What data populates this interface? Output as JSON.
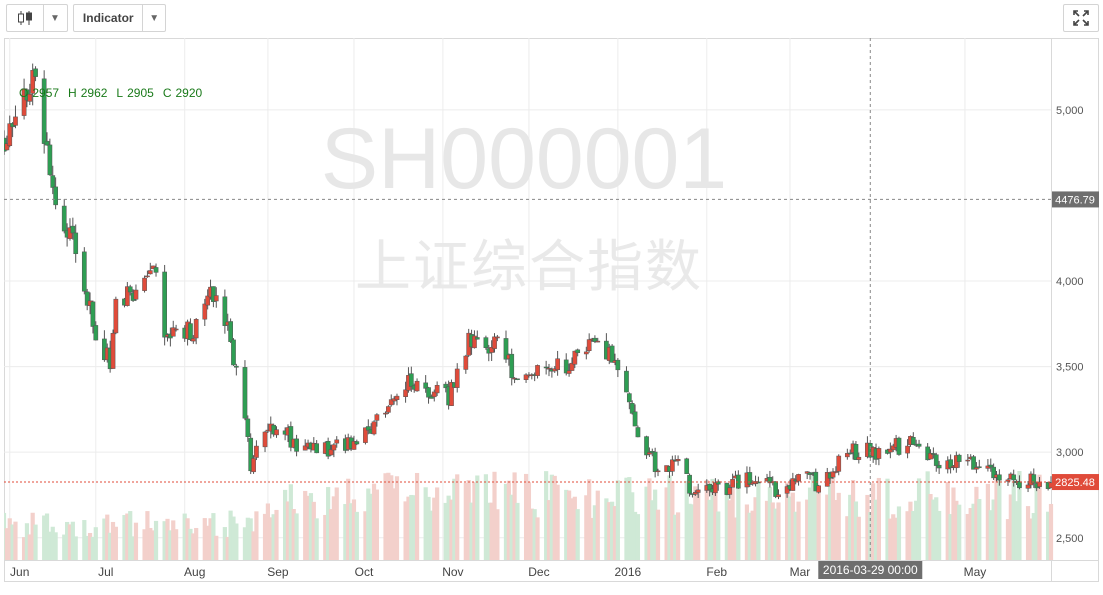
{
  "toolbar": {
    "chart_type_icon": "candlestick-icon",
    "dropdown_icon": "chevron-down-icon",
    "indicator_label": "Indicator",
    "fullscreen_icon": "expand-icon"
  },
  "legend": {
    "o_label": "O",
    "o_value": "2957",
    "h_label": "H",
    "h_value": "2962",
    "l_label": "L",
    "l_value": "2905",
    "c_label": "C",
    "c_value": "2920"
  },
  "watermark": {
    "symbol": "SH000001",
    "name": "上证综合指数"
  },
  "crosshair": {
    "price_label": "4476.79",
    "price": 4476.79,
    "time_label": "2016-03-29 00:00",
    "time": "2016-03-29"
  },
  "last_price": {
    "label": "2825.48",
    "price": 2825.48
  },
  "colors": {
    "up": "#e04b3a",
    "down": "#2e9e53",
    "up_volume": "#f3d0cb",
    "down_volume": "#cfe9d6",
    "crosshair": "#888888",
    "last_price": "#e04b3a",
    "grid": "#ececec"
  },
  "chart_data": {
    "type": "candlestick",
    "title": "SH000001",
    "subtitle": "上证综合指数",
    "xlabel": "",
    "ylabel": "",
    "x_range": [
      "2015-06-01",
      "2016-05-31"
    ],
    "ylim": [
      2370,
      5420
    ],
    "grid": true,
    "legend_position": "top-left",
    "y_ticks": [
      "2,500",
      "3,000",
      "3,500",
      "4,000",
      "5,000"
    ],
    "y_tick_values": [
      2500,
      3000,
      3500,
      4000,
      5000
    ],
    "x_ticks": [
      {
        "label": "Jun",
        "date": "2015-06-03"
      },
      {
        "label": "Jul",
        "date": "2015-07-03"
      },
      {
        "label": "Aug",
        "date": "2015-08-03"
      },
      {
        "label": "Sep",
        "date": "2015-09-01"
      },
      {
        "label": "Oct",
        "date": "2015-10-01"
      },
      {
        "label": "Nov",
        "date": "2015-11-01"
      },
      {
        "label": "Dec",
        "date": "2015-12-01"
      },
      {
        "label": "2016",
        "date": "2016-01-01"
      },
      {
        "label": "Feb",
        "date": "2016-02-01"
      },
      {
        "label": "Mar",
        "date": "2016-03-01"
      },
      {
        "label": "May",
        "date": "2016-05-01"
      }
    ],
    "anchor_closes": [
      [
        "2015-06-01",
        4830
      ],
      [
        "2015-06-08",
        5110
      ],
      [
        "2015-06-12",
        5170
      ],
      [
        "2015-06-19",
        4480
      ],
      [
        "2015-06-26",
        4190
      ],
      [
        "2015-07-03",
        3700
      ],
      [
        "2015-07-08",
        3510
      ],
      [
        "2015-07-10",
        3880
      ],
      [
        "2015-07-17",
        3960
      ],
      [
        "2015-07-24",
        4070
      ],
      [
        "2015-07-27",
        3730
      ],
      [
        "2015-07-31",
        3660
      ],
      [
        "2015-08-07",
        3740
      ],
      [
        "2015-08-14",
        3960
      ],
      [
        "2015-08-18",
        3750
      ],
      [
        "2015-08-24",
        3210
      ],
      [
        "2015-08-26",
        2930
      ],
      [
        "2015-09-01",
        3170
      ],
      [
        "2015-09-15",
        3010
      ],
      [
        "2015-09-30",
        3050
      ],
      [
        "2015-10-09",
        3180
      ],
      [
        "2015-10-20",
        3420
      ],
      [
        "2015-11-03",
        3320
      ],
      [
        "2015-11-10",
        3640
      ],
      [
        "2015-11-20",
        3630
      ],
      [
        "2015-11-27",
        3440
      ],
      [
        "2015-12-04",
        3520
      ],
      [
        "2015-12-15",
        3510
      ],
      [
        "2015-12-22",
        3650
      ],
      [
        "2015-12-31",
        3540
      ],
      [
        "2016-01-07",
        3120
      ],
      [
        "2016-01-15",
        2900
      ],
      [
        "2016-01-22",
        2920
      ],
      [
        "2016-01-28",
        2740
      ],
      [
        "2016-02-05",
        2780
      ],
      [
        "2016-02-19",
        2860
      ],
      [
        "2016-02-26",
        2760
      ],
      [
        "2016-03-04",
        2870
      ],
      [
        "2016-03-11",
        2810
      ],
      [
        "2016-03-21",
        3010
      ],
      [
        "2016-03-31",
        3000
      ],
      [
        "2016-04-13",
        3060
      ],
      [
        "2016-04-20",
        2960
      ],
      [
        "2016-04-29",
        2940
      ],
      [
        "2016-05-06",
        2910
      ],
      [
        "2016-05-13",
        2830
      ],
      [
        "2016-05-31",
        2825
      ]
    ]
  }
}
